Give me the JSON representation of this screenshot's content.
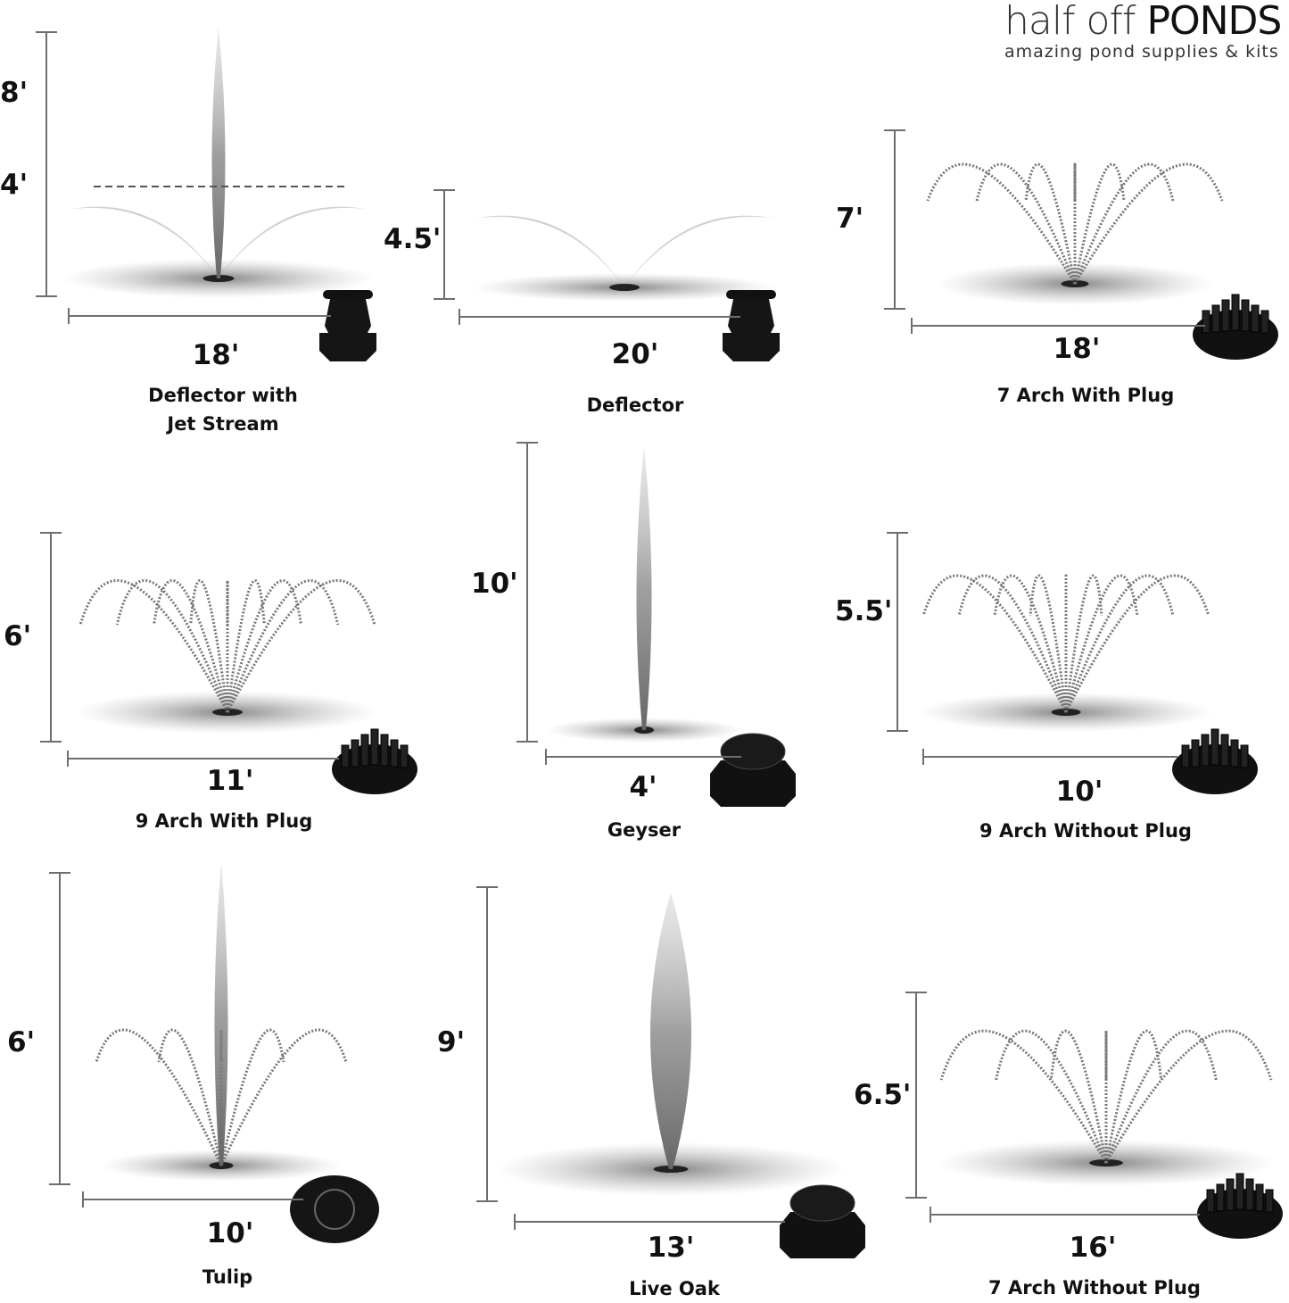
{
  "logo": {
    "brand_light": "half off",
    "brand_bold": "PONDS",
    "tagline": "amazing pond supplies & kits"
  },
  "panels": [
    {
      "name_lines": [
        "Deflector with",
        "Jet Stream"
      ],
      "height": "8'",
      "mid_height": "4'",
      "width": "18'",
      "nozzle": "deflector-nozzle"
    },
    {
      "name_lines": [
        "Deflector"
      ],
      "height": "4.5'",
      "width": "20'",
      "nozzle": "deflector-nozzle"
    },
    {
      "name_lines": [
        "7 Arch With Plug"
      ],
      "height": "7'",
      "width": "18'",
      "nozzle": "multi-jet-nozzle"
    },
    {
      "name_lines": [
        "9 Arch With Plug"
      ],
      "height": "6'",
      "width": "11'",
      "nozzle": "multi-jet-nozzle"
    },
    {
      "name_lines": [
        "Geyser"
      ],
      "height": "10'",
      "width": "4'",
      "nozzle": "geyser-nozzle"
    },
    {
      "name_lines": [
        "9 Arch Without Plug"
      ],
      "height": "5.5'",
      "width": "10'",
      "nozzle": "multi-jet-nozzle"
    },
    {
      "name_lines": [
        "Tulip"
      ],
      "height": "6'",
      "width": "10'",
      "nozzle": "tulip-nozzle"
    },
    {
      "name_lines": [
        "Live Oak"
      ],
      "height": "9'",
      "width": "13'",
      "nozzle": "geyser-nozzle"
    },
    {
      "name_lines": [
        "7 Arch Without Plug"
      ],
      "height": "6.5'",
      "width": "16'",
      "nozzle": "multi-jet-nozzle"
    }
  ]
}
